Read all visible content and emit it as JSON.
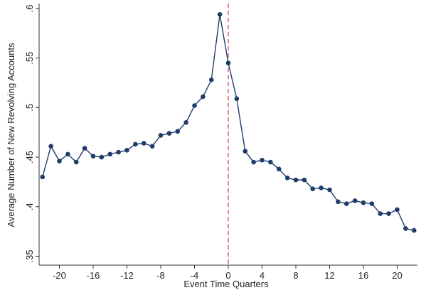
{
  "chart_data": {
    "type": "line",
    "x_label": "Event Time Quarters",
    "y_label": "Average Number of New Revolving Accounts",
    "x": [
      -22,
      -21,
      -20,
      -19,
      -18,
      -17,
      -16,
      -15,
      -14,
      -13,
      -12,
      -11,
      -10,
      -9,
      -8,
      -7,
      -6,
      -5,
      -4,
      -3,
      -2,
      -1,
      0,
      1,
      2,
      3,
      4,
      5,
      6,
      7,
      8,
      9,
      10,
      11,
      12,
      13,
      14,
      15,
      16,
      17,
      18,
      19,
      20,
      21,
      22
    ],
    "series": [
      {
        "color": "#1f3d6b",
        "values": [
          0.43,
          0.461,
          0.446,
          0.453,
          0.445,
          0.459,
          0.451,
          0.45,
          0.453,
          0.455,
          0.457,
          0.463,
          0.464,
          0.461,
          0.472,
          0.474,
          0.476,
          0.485,
          0.502,
          0.511,
          0.528,
          0.594,
          0.545,
          0.509,
          0.456,
          0.445,
          0.447,
          0.445,
          0.438,
          0.429,
          0.427,
          0.427,
          0.418,
          0.419,
          0.417,
          0.405,
          0.403,
          0.406,
          0.404,
          0.403,
          0.393,
          0.393,
          0.397,
          0.378,
          0.376
        ]
      }
    ],
    "xlim": [
      -22.4,
      22.4
    ],
    "ylim": [
      0.341,
      0.605
    ],
    "xticks": [
      -20,
      -16,
      -12,
      -8,
      -4,
      0,
      4,
      8,
      12,
      16,
      20
    ],
    "yticks": [
      {
        "value": 0.35,
        "label": ".35"
      },
      {
        "value": 0.4,
        "label": ".4"
      },
      {
        "value": 0.45,
        "label": ".45"
      },
      {
        "value": 0.5,
        "label": ".5"
      },
      {
        "value": 0.55,
        "label": ".55"
      },
      {
        "value": 0.6,
        "label": ".6"
      }
    ],
    "reference_line": {
      "x": 0,
      "color": "#d9475f"
    }
  }
}
